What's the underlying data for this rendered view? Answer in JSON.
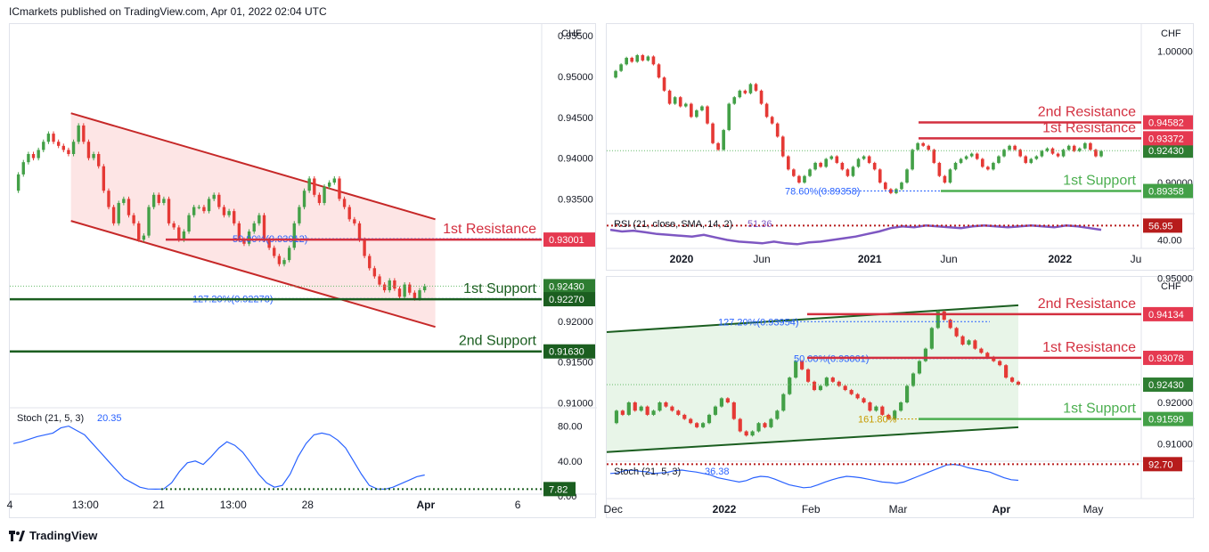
{
  "header": {
    "published": "ICmarkets published on TradingView.com, Apr 01, 2022 02:04 UTC"
  },
  "footer": {
    "brand": "TradingView"
  },
  "colors": {
    "resistance": "#d32f3f",
    "support_dark": "#1b5e20",
    "support_light": "#4caf50",
    "fib": "#2962ff",
    "stoch": "#2962ff",
    "rsi": "#7e57c2",
    "bull": "#43a047",
    "bear": "#e53935"
  },
  "chart_data": [
    {
      "id": "left",
      "type": "candlestick",
      "title": "",
      "currency": "CHF",
      "ylim": [
        0.9095,
        0.956
      ],
      "y_ticks": [
        "0.95500",
        "0.95000",
        "0.94500",
        "0.94000",
        "0.93500",
        "0.92000",
        "0.91500",
        "0.91000"
      ],
      "y_tick_values": [
        0.955,
        0.95,
        0.945,
        0.94,
        0.935,
        0.92,
        0.915,
        0.91
      ],
      "x_ticks": [
        "4",
        "13:00",
        "21",
        "13:00",
        "28",
        "Apr",
        "6"
      ],
      "x_tick_pos": [
        0,
        0.142,
        0.28,
        0.42,
        0.56,
        0.782,
        0.955
      ],
      "x_extent": [
        0,
        1
      ],
      "series_pos": [
        0,
        0.78
      ],
      "close_series": [
        0.936,
        0.938,
        0.9395,
        0.9405,
        0.94,
        0.941,
        0.942,
        0.943,
        0.942,
        0.9415,
        0.941,
        0.9405,
        0.942,
        0.944,
        0.942,
        0.94,
        0.9405,
        0.939,
        0.936,
        0.934,
        0.932,
        0.9345,
        0.935,
        0.933,
        0.932,
        0.93,
        0.9305,
        0.934,
        0.9355,
        0.9345,
        0.935,
        0.932,
        0.9315,
        0.93,
        0.931,
        0.933,
        0.934,
        0.934,
        0.9335,
        0.935,
        0.9355,
        0.934,
        0.933,
        0.9335,
        0.932,
        0.93,
        0.9295,
        0.931,
        0.932,
        0.933,
        0.93,
        0.929,
        0.928,
        0.927,
        0.9275,
        0.929,
        0.932,
        0.934,
        0.936,
        0.9375,
        0.9355,
        0.9345,
        0.9365,
        0.937,
        0.9375,
        0.935,
        0.934,
        0.9325,
        0.932,
        0.93,
        0.928,
        0.9265,
        0.9255,
        0.9245,
        0.9238,
        0.925,
        0.924,
        0.923,
        0.9245,
        0.9235,
        0.9228,
        0.9238,
        0.9243
      ],
      "levels": [
        {
          "label": "1st Resistance",
          "price": 0.93001,
          "tag": "0.93001",
          "color": "#d32f3f"
        },
        {
          "label": "1st Support",
          "price": 0.9227,
          "tag": "0.92270",
          "color": "#1b5e20"
        },
        {
          "label": "2nd Support",
          "price": 0.9163,
          "tag": "0.91630",
          "color": "#1b5e20"
        }
      ],
      "current_price": {
        "value": 0.9243,
        "tag": "0.92430"
      },
      "fib_labels": [
        {
          "text": "50.00%(0.93012)",
          "price": 0.93012
        },
        {
          "text": "127.20%(0.92278)",
          "price": 0.92278
        }
      ],
      "channel": {
        "upper": [
          [
            0.115,
            0.9455
          ],
          [
            0.8,
            0.9325
          ]
        ],
        "lower": [
          [
            0.115,
            0.9323
          ],
          [
            0.8,
            0.9193
          ]
        ]
      },
      "indicator": {
        "name": "Stoch (21, 5, 3)",
        "value_label": "20.35",
        "ylim": [
          0,
          100
        ],
        "y_ticks": [
          "80.00",
          "40.00",
          "0.00"
        ],
        "y_tick_values": [
          80,
          40,
          0
        ],
        "level": {
          "value": 7.82,
          "tag": "7.82"
        },
        "series": [
          60,
          62,
          65,
          68,
          70,
          72,
          78,
          80,
          75,
          70,
          60,
          50,
          40,
          30,
          20,
          15,
          10,
          8,
          7.8,
          8,
          15,
          28,
          38,
          40,
          36,
          45,
          55,
          62,
          58,
          50,
          38,
          25,
          15,
          10,
          12,
          25,
          45,
          60,
          70,
          72,
          70,
          64,
          55,
          40,
          25,
          12,
          8,
          7.8,
          10,
          14,
          18,
          22,
          24
        ]
      }
    },
    {
      "id": "top-right",
      "type": "candlestick",
      "currency": "CHF",
      "ylim": [
        0.877,
        1.018
      ],
      "y_ticks": [
        "1.00000",
        "0.90000"
      ],
      "y_tick_values": [
        1.0,
        0.9
      ],
      "x_ticks": [
        "2020",
        "Jun",
        "2021",
        "Jun",
        "2022",
        "Ju"
      ],
      "x_tick_pos": [
        0.14,
        0.29,
        0.492,
        0.64,
        0.848,
        0.99
      ],
      "x_extent": [
        0,
        1
      ],
      "series_pos": [
        0,
        0.925
      ],
      "close_series": [
        0.98,
        0.985,
        0.99,
        0.995,
        0.992,
        0.997,
        0.993,
        0.996,
        0.99,
        0.98,
        0.97,
        0.96,
        0.965,
        0.958,
        0.96,
        0.95,
        0.955,
        0.958,
        0.945,
        0.93,
        0.925,
        0.94,
        0.96,
        0.965,
        0.97,
        0.968,
        0.975,
        0.97,
        0.96,
        0.95,
        0.945,
        0.935,
        0.92,
        0.91,
        0.905,
        0.9,
        0.905,
        0.91,
        0.915,
        0.912,
        0.918,
        0.92,
        0.915,
        0.91,
        0.905,
        0.912,
        0.918,
        0.92,
        0.915,
        0.91,
        0.9,
        0.895,
        0.892,
        0.895,
        0.9,
        0.91,
        0.925,
        0.93,
        0.928,
        0.925,
        0.915,
        0.905,
        0.9,
        0.91,
        0.915,
        0.918,
        0.92,
        0.922,
        0.918,
        0.912,
        0.91,
        0.915,
        0.92,
        0.925,
        0.928,
        0.925,
        0.92,
        0.915,
        0.918,
        0.92,
        0.924,
        0.926,
        0.922,
        0.92,
        0.925,
        0.928,
        0.924,
        0.926,
        0.93,
        0.925,
        0.92,
        0.924
      ],
      "levels": [
        {
          "label": "2nd Resistance",
          "price": 0.94582,
          "tag": "0.94582",
          "color": "#d32f3f"
        },
        {
          "label": "1st Resistance",
          "price": 0.93372,
          "tag": "0.93372",
          "color": "#d32f3f"
        },
        {
          "label": "1st Support",
          "price": 0.89358,
          "tag": "0.89358",
          "color": "#4caf50"
        }
      ],
      "current_price": {
        "value": 0.9243,
        "tag": "0.92430"
      },
      "fib_labels": [
        {
          "text": "78.60%(0.89358)",
          "price": 0.89358
        }
      ],
      "indicator": {
        "name": "RSI (21, close, SMA, 14, 2)",
        "value_label": "51.36",
        "ylim": [
          30,
          70
        ],
        "y_ticks": [
          "40.00"
        ],
        "y_tick_values": [
          40
        ],
        "level": {
          "value": 56.95,
          "tag": "56.95"
        },
        "series": [
          52,
          50,
          51,
          49,
          47,
          46,
          45,
          44,
          46,
          43,
          40,
          38,
          37,
          36,
          38,
          36,
          35,
          37,
          38,
          40,
          42,
          44,
          47,
          50,
          54,
          56,
          55,
          57,
          56,
          55,
          54,
          56,
          57,
          56,
          55,
          56,
          57,
          56,
          55,
          57,
          56,
          54,
          52
        ]
      }
    },
    {
      "id": "bottom-right",
      "type": "candlestick",
      "currency": "CHF",
      "ylim": [
        0.906,
        0.9495
      ],
      "y_ticks": [
        "0.95000",
        "0.92000",
        "0.91000"
      ],
      "y_tick_values": [
        0.95,
        0.92,
        0.91
      ],
      "x_ticks": [
        "Dec",
        "2022",
        "Feb",
        "Mar",
        "Apr",
        "May"
      ],
      "x_tick_pos": [
        0.012,
        0.22,
        0.382,
        0.545,
        0.738,
        0.91
      ],
      "x_extent": [
        0,
        1
      ],
      "series_pos": [
        0,
        0.77
      ],
      "close_series": [
        0.915,
        0.918,
        0.917,
        0.92,
        0.918,
        0.919,
        0.917,
        0.918,
        0.92,
        0.919,
        0.918,
        0.917,
        0.916,
        0.915,
        0.914,
        0.915,
        0.917,
        0.919,
        0.921,
        0.92,
        0.916,
        0.913,
        0.912,
        0.913,
        0.915,
        0.914,
        0.916,
        0.918,
        0.922,
        0.926,
        0.93,
        0.928,
        0.925,
        0.923,
        0.924,
        0.926,
        0.925,
        0.924,
        0.923,
        0.922,
        0.921,
        0.92,
        0.918,
        0.919,
        0.917,
        0.916,
        0.918,
        0.92,
        0.924,
        0.927,
        0.93,
        0.933,
        0.938,
        0.942,
        0.94,
        0.938,
        0.936,
        0.934,
        0.935,
        0.933,
        0.932,
        0.931,
        0.93,
        0.929,
        0.926,
        0.925,
        0.9243
      ],
      "levels": [
        {
          "label": "2nd Resistance",
          "price": 0.94134,
          "tag": "0.94134",
          "color": "#d32f3f"
        },
        {
          "label": "1st Resistance",
          "price": 0.93078,
          "tag": "0.93078",
          "color": "#d32f3f"
        },
        {
          "label": "1st Support",
          "price": 0.91599,
          "tag": "0.91599",
          "color": "#4caf50"
        }
      ],
      "current_price": {
        "value": 0.9243,
        "tag": "0.92430"
      },
      "fib_labels": [
        {
          "text": "127.20%(0.93954)",
          "price": 0.93954
        },
        {
          "text": "50.00%(0.93061)",
          "price": 0.93061
        },
        {
          "text": "161.80%",
          "price": 0.91599
        }
      ],
      "channel": {
        "upper": [
          [
            0.0,
            0.937
          ],
          [
            0.77,
            0.9435
          ]
        ],
        "lower": [
          [
            0.0,
            0.908
          ],
          [
            0.77,
            0.914
          ]
        ]
      },
      "indicator": {
        "name": "Stoch (21, 5, 3)",
        "value_label": "36.38",
        "ylim": [
          0,
          100
        ],
        "y_ticks": [],
        "y_tick_values": [],
        "level": {
          "value": 92.7,
          "tag": "92.70"
        },
        "series": [
          60,
          62,
          70,
          72,
          68,
          66,
          60,
          62,
          64,
          70,
          72,
          68,
          65,
          60,
          55,
          45,
          40,
          35,
          30,
          35,
          45,
          50,
          48,
          40,
          30,
          20,
          15,
          10,
          12,
          20,
          30,
          38,
          45,
          50,
          48,
          45,
          40,
          35,
          30,
          28,
          25,
          30,
          40,
          50,
          60,
          70,
          80,
          90,
          92,
          88,
          80,
          75,
          70,
          65,
          55,
          45,
          38,
          36
        ]
      }
    }
  ]
}
